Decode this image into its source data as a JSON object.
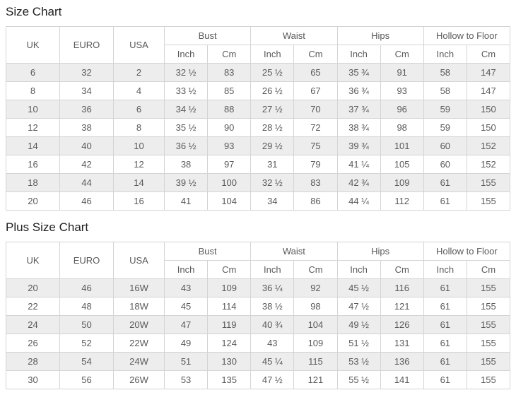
{
  "colors": {
    "border": "#d4d4d4",
    "stripe": "#ededed",
    "text": "#5a5a5a",
    "title": "#222222",
    "background": "#ffffff"
  },
  "tables": [
    {
      "title": "Size Chart",
      "header": {
        "row_span_cols": [
          "UK",
          "EURO",
          "USA"
        ],
        "groups": [
          "Bust",
          "Waist",
          "Hips",
          "Hollow to Floor"
        ],
        "units": [
          "Inch",
          "Cm"
        ]
      },
      "rows": [
        [
          "6",
          "32",
          "2",
          "32 ½",
          "83",
          "25 ½",
          "65",
          "35 ¾",
          "91",
          "58",
          "147"
        ],
        [
          "8",
          "34",
          "4",
          "33 ½",
          "85",
          "26 ½",
          "67",
          "36 ¾",
          "93",
          "58",
          "147"
        ],
        [
          "10",
          "36",
          "6",
          "34 ½",
          "88",
          "27 ½",
          "70",
          "37 ¾",
          "96",
          "59",
          "150"
        ],
        [
          "12",
          "38",
          "8",
          "35 ½",
          "90",
          "28 ½",
          "72",
          "38 ¾",
          "98",
          "59",
          "150"
        ],
        [
          "14",
          "40",
          "10",
          "36 ½",
          "93",
          "29 ½",
          "75",
          "39 ¾",
          "101",
          "60",
          "152"
        ],
        [
          "16",
          "42",
          "12",
          "38",
          "97",
          "31",
          "79",
          "41 ¼",
          "105",
          "60",
          "152"
        ],
        [
          "18",
          "44",
          "14",
          "39 ½",
          "100",
          "32 ½",
          "83",
          "42 ¾",
          "109",
          "61",
          "155"
        ],
        [
          "20",
          "46",
          "16",
          "41",
          "104",
          "34",
          "86",
          "44 ¼",
          "112",
          "61",
          "155"
        ]
      ]
    },
    {
      "title": "Plus Size Chart",
      "header": {
        "row_span_cols": [
          "UK",
          "EURO",
          "USA"
        ],
        "groups": [
          "Bust",
          "Waist",
          "Hips",
          "Hollow to Floor"
        ],
        "units": [
          "Inch",
          "Cm"
        ]
      },
      "rows": [
        [
          "20",
          "46",
          "16W",
          "43",
          "109",
          "36 ¼",
          "92",
          "45 ½",
          "116",
          "61",
          "155"
        ],
        [
          "22",
          "48",
          "18W",
          "45",
          "114",
          "38 ½",
          "98",
          "47 ½",
          "121",
          "61",
          "155"
        ],
        [
          "24",
          "50",
          "20W",
          "47",
          "119",
          "40 ¾",
          "104",
          "49 ½",
          "126",
          "61",
          "155"
        ],
        [
          "26",
          "52",
          "22W",
          "49",
          "124",
          "43",
          "109",
          "51 ½",
          "131",
          "61",
          "155"
        ],
        [
          "28",
          "54",
          "24W",
          "51",
          "130",
          "45 ¼",
          "115",
          "53 ½",
          "136",
          "61",
          "155"
        ],
        [
          "30",
          "56",
          "26W",
          "53",
          "135",
          "47 ½",
          "121",
          "55 ½",
          "141",
          "61",
          "155"
        ]
      ]
    }
  ]
}
